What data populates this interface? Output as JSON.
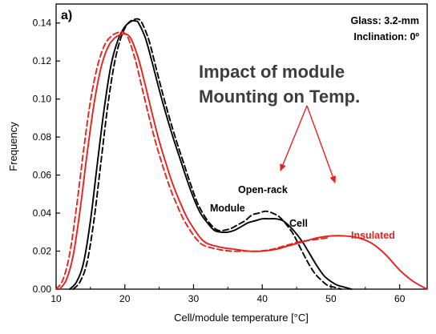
{
  "chart_data": {
    "type": "line",
    "panel_label": "a)",
    "xlabel": "Cell/module temperature [°C]",
    "ylabel": "Frequency",
    "xlim": [
      10,
      64
    ],
    "ylim": [
      0,
      0.15
    ],
    "x_ticks": [
      10,
      20,
      30,
      40,
      50,
      60
    ],
    "x_tick_labels": [
      "10",
      "20",
      "30",
      "40",
      "50",
      "60"
    ],
    "y_ticks": [
      0,
      0.02,
      0.04,
      0.06,
      0.08,
      0.1,
      0.12,
      0.14
    ],
    "y_tick_labels": [
      "0.00",
      "0.02",
      "0.04",
      "0.06",
      "0.08",
      "0.10",
      "0.12",
      "0.14"
    ],
    "grid": false,
    "info_lines": [
      "Glass: 3.2-mm",
      "Inclination: 0º"
    ],
    "headline_lines": [
      "Impact of module",
      "Mounting on Temp."
    ],
    "annotations": {
      "open_rack": "Open-rack",
      "module": "Module",
      "cell": "Cell",
      "insulated": "Insulated"
    },
    "colors": {
      "black": "#000000",
      "red": "#e8211c",
      "headline": "#3c3c3c"
    },
    "series": [
      {
        "color": "#000000",
        "dashed": false,
        "x": [
          12.0,
          13.0,
          14.0,
          15.0,
          16.0,
          17.0,
          18.0,
          19.0,
          20.0,
          21.0,
          21.6,
          22.0,
          23.0,
          24.0,
          25.0,
          26.0,
          27.0,
          28.0,
          29.0,
          30.0,
          31.0,
          32.0,
          33.0,
          34.0,
          35.0,
          36.0,
          37.0,
          38.0,
          39.0,
          40.0,
          41.0,
          42.0,
          43.0,
          44.0,
          45.0,
          46.0,
          47.0,
          48.0,
          49.0,
          50.0,
          51.0,
          52.0,
          53.0
        ],
        "y": [
          0.0,
          0.004,
          0.014,
          0.036,
          0.066,
          0.095,
          0.118,
          0.131,
          0.138,
          0.141,
          0.141,
          0.14,
          0.132,
          0.119,
          0.105,
          0.092,
          0.08,
          0.069,
          0.058,
          0.048,
          0.04,
          0.035,
          0.031,
          0.03,
          0.03,
          0.031,
          0.033,
          0.035,
          0.036,
          0.037,
          0.037,
          0.037,
          0.036,
          0.033,
          0.029,
          0.024,
          0.018,
          0.012,
          0.007,
          0.004,
          0.002,
          0.001,
          0.0
        ]
      },
      {
        "color": "#000000",
        "dashed": true,
        "x": [
          12.5,
          13.5,
          14.5,
          15.5,
          16.5,
          17.5,
          18.5,
          19.5,
          20.5,
          21.5,
          22.0,
          22.5,
          23.5,
          24.5,
          25.5,
          26.5,
          27.5,
          28.5,
          29.5,
          30.5,
          31.5,
          32.5,
          33.5,
          34.5,
          35.5,
          36.5,
          37.5,
          38.5,
          39.5,
          40.5,
          41.5,
          42.5,
          43.5,
          44.5,
          45.5,
          46.5,
          47.5,
          48.5,
          49.5,
          50.5,
          51.5
        ],
        "y": [
          0.0,
          0.004,
          0.014,
          0.036,
          0.066,
          0.096,
          0.119,
          0.133,
          0.14,
          0.142,
          0.142,
          0.14,
          0.131,
          0.117,
          0.103,
          0.09,
          0.078,
          0.067,
          0.056,
          0.046,
          0.039,
          0.034,
          0.031,
          0.031,
          0.032,
          0.034,
          0.036,
          0.039,
          0.04,
          0.041,
          0.04,
          0.038,
          0.034,
          0.029,
          0.022,
          0.015,
          0.009,
          0.005,
          0.002,
          0.001,
          0.0
        ]
      },
      {
        "color": "#e8211c",
        "dashed": false,
        "x": [
          10.5,
          11.5,
          12.5,
          13.5,
          14.5,
          15.5,
          16.5,
          17.5,
          18.5,
          19.5,
          20.3,
          21.0,
          22.0,
          23.0,
          24.0,
          25.0,
          26.0,
          27.0,
          28.0,
          29.0,
          30.0,
          31.0,
          32.0,
          34.0,
          36.0,
          38.0,
          40.0,
          42.0,
          44.0,
          46.0,
          48.0,
          50.0,
          52.0,
          54.0,
          56.0,
          58.0,
          60.0,
          62.0,
          64.0
        ],
        "y": [
          0.0,
          0.005,
          0.018,
          0.042,
          0.071,
          0.097,
          0.116,
          0.127,
          0.132,
          0.134,
          0.134,
          0.131,
          0.121,
          0.107,
          0.092,
          0.078,
          0.066,
          0.055,
          0.046,
          0.038,
          0.032,
          0.027,
          0.024,
          0.022,
          0.021,
          0.02,
          0.02,
          0.021,
          0.023,
          0.025,
          0.027,
          0.028,
          0.028,
          0.027,
          0.024,
          0.018,
          0.01,
          0.004,
          0.0
        ]
      },
      {
        "color": "#e8211c",
        "dashed": true,
        "x": [
          10.0,
          11.0,
          12.0,
          13.0,
          14.0,
          15.0,
          16.0,
          17.0,
          18.0,
          19.0,
          19.8,
          20.5,
          21.5,
          22.5,
          23.5,
          24.5,
          25.5,
          26.5,
          27.5,
          28.5,
          29.5,
          30.5,
          31.5,
          33.5,
          35.5,
          37.5,
          39.5,
          41.5,
          43.5,
          45.5,
          47.5,
          49.5
        ],
        "y": [
          0.0,
          0.005,
          0.019,
          0.044,
          0.073,
          0.099,
          0.117,
          0.128,
          0.133,
          0.135,
          0.135,
          0.132,
          0.121,
          0.106,
          0.091,
          0.077,
          0.065,
          0.054,
          0.045,
          0.037,
          0.031,
          0.026,
          0.023,
          0.021,
          0.02,
          0.02,
          0.02,
          0.021,
          0.023,
          0.025,
          0.026,
          0.027
        ]
      }
    ]
  }
}
